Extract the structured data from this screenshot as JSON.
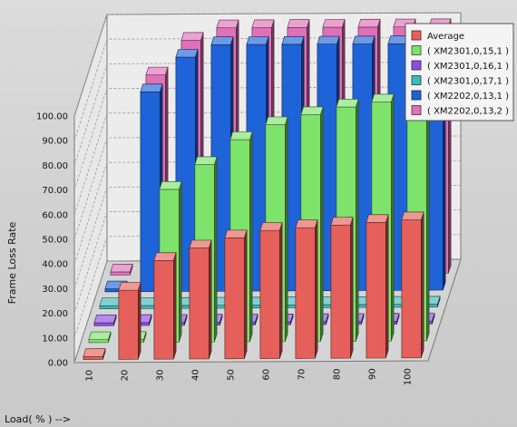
{
  "chart_data": {
    "type": "bar",
    "style": "3d-clustered",
    "xlabel": "Load( % ) -->",
    "ylabel": "Frame Loss Rate",
    "ylim": [
      0,
      100
    ],
    "yticks": [
      "0.00",
      "10.00",
      "20.00",
      "30.00",
      "40.00",
      "50.00",
      "60.00",
      "70.00",
      "80.00",
      "90.00",
      "100.00"
    ],
    "categories": [
      "10",
      "20",
      "30",
      "40",
      "50",
      "60",
      "70",
      "80",
      "90",
      "100"
    ],
    "legend_position": "top-right",
    "series": [
      {
        "name": "Average",
        "color": "#e5605a",
        "values": [
          0,
          28,
          40,
          45,
          49,
          52,
          53,
          54,
          55,
          56
        ]
      },
      {
        "name": "( XM2301,0,15,1 )",
        "color": "#7ee36a",
        "values": [
          0,
          0,
          62,
          72,
          82,
          88,
          92,
          95,
          97,
          98
        ]
      },
      {
        "name": "( XM2301,0,16,1 )",
        "color": "#8a4fe0",
        "values": [
          0,
          0,
          0,
          0,
          0,
          0,
          0,
          0,
          0,
          0
        ]
      },
      {
        "name": "( XM2301,0,17,1 )",
        "color": "#3fb8b8",
        "values": [
          0,
          0,
          0,
          0,
          0,
          0,
          0,
          0,
          0,
          0
        ]
      },
      {
        "name": "( XM2202,0,13,1 )",
        "color": "#1f63d8",
        "values": [
          0,
          81,
          95,
          100,
          100,
          100,
          100,
          100,
          100,
          100
        ]
      },
      {
        "name": "( XM2202,0,13,2 )",
        "color": "#e070b8",
        "values": [
          0,
          81,
          95,
          100,
          100,
          100,
          100,
          100,
          100,
          100
        ]
      }
    ]
  }
}
